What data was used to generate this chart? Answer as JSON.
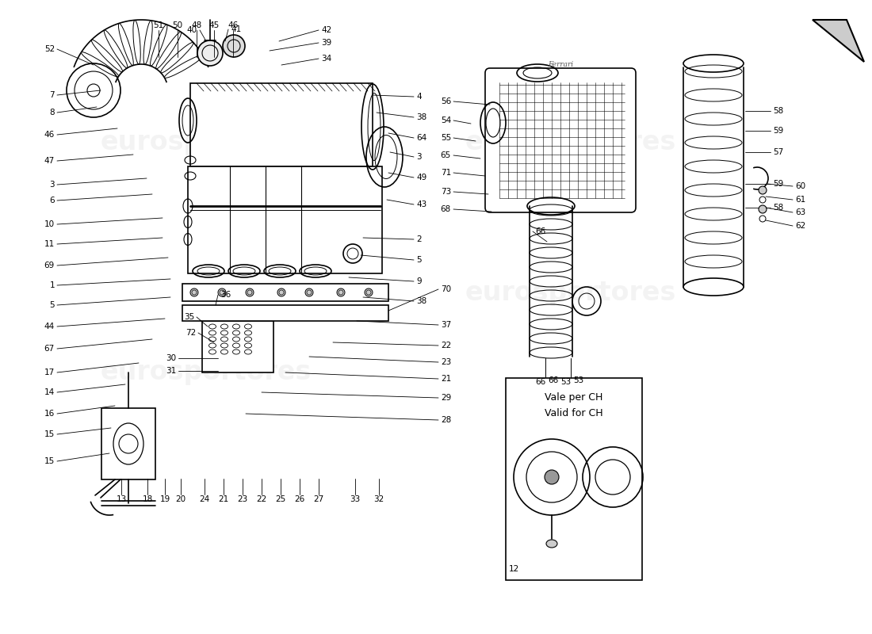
{
  "title": "",
  "bg_color": "#ffffff",
  "line_color": "#000000",
  "watermark_text": "eurosportores",
  "watermark_color": "#cccccc",
  "arrow_color": "#000000",
  "label_color": "#000000",
  "box_label": "Vale per CH\nValid for CH"
}
